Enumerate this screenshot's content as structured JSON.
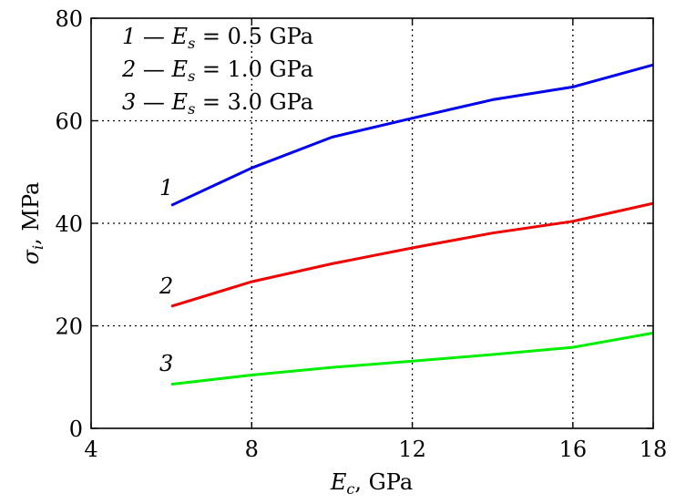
{
  "chart_data": {
    "type": "line",
    "xlabel": "E_c, GPa",
    "ylabel": "σ_i, MPa",
    "xlim": [
      4,
      18
    ],
    "ylim": [
      0,
      80
    ],
    "xticks": [
      4,
      8,
      12,
      16,
      18
    ],
    "yticks": [
      0,
      20,
      40,
      60,
      80
    ],
    "grid": "dotted, x at 8, 12, 16; y at 20, 40, 60",
    "legend_placement": "top-left",
    "legend_entries": [
      "1 — E_s = 0.5 GPa",
      "2 — E_s = 1.0 GPa",
      "3 — E_s = 3.0 GPa"
    ],
    "series": [
      {
        "name": "1",
        "color": "#0000ee",
        "x": [
          6,
          8,
          10,
          12,
          14,
          16,
          18
        ],
        "values": [
          43.5,
          50.8,
          56.8,
          60.5,
          64.1,
          66.6,
          70.9
        ]
      },
      {
        "name": "2",
        "color": "#ee0000",
        "x": [
          6,
          8,
          10,
          12,
          14,
          16,
          18
        ],
        "values": [
          23.8,
          28.6,
          32.1,
          35.2,
          38.1,
          40.4,
          43.9
        ]
      },
      {
        "name": "3",
        "color": "#00ee00",
        "x": [
          6,
          8,
          10,
          12,
          14,
          16,
          18
        ],
        "values": [
          8.6,
          10.4,
          11.9,
          13.1,
          14.4,
          15.8,
          18.6
        ]
      }
    ]
  }
}
